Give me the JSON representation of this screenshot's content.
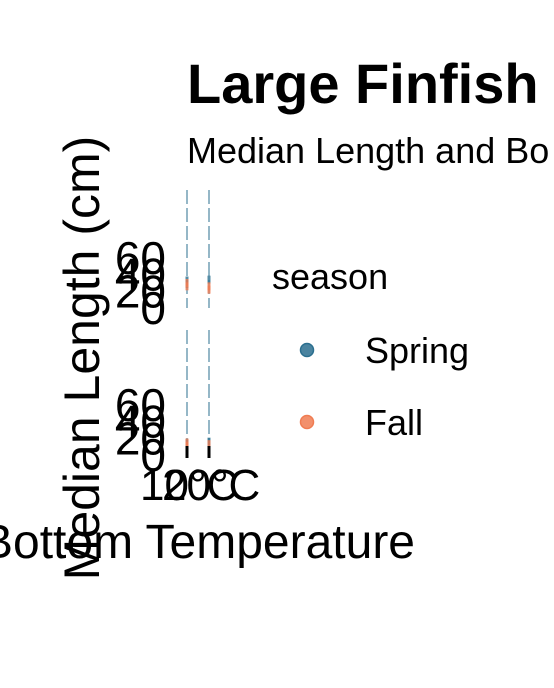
{
  "chart_data": {
    "type": "scatter",
    "title": "Large Finfish",
    "subtitle": "Median Length and Bo",
    "xlabel": "Bottom Temperature",
    "ylabel": "Median Length (cm)",
    "y_ticks": [
      "60",
      "40",
      "20",
      "0"
    ],
    "ylim": [
      0,
      60
    ],
    "x_ticks": [
      "10°C",
      "20°C"
    ],
    "legend": {
      "title": "season",
      "position": "right",
      "entries": [
        {
          "label": "Spring",
          "color": "#2b6f8f"
        },
        {
          "label": "Fall",
          "color": "#f07c52"
        }
      ]
    },
    "panels": [
      {
        "columns": [
          {
            "series": [
              {
                "name": "Spring",
                "points": [
                  [
                    12,
                    33
                  ],
                  [
                    12,
                    29
                  ]
                ]
              },
              {
                "name": "Fall",
                "points": [
                  [
                    12,
                    30
                  ],
                  [
                    12,
                    26
                  ]
                ]
              }
            ]
          },
          {
            "series": [
              {
                "name": "Spring",
                "points": [
                  [
                    20,
                    34
                  ]
                ]
              },
              {
                "name": "Fall",
                "points": [
                  [
                    20,
                    26
                  ],
                  [
                    20,
                    22
                  ]
                ]
              }
            ]
          }
        ]
      },
      {
        "columns": [
          {
            "series": [
              {
                "name": "Spring",
                "points": [
                  [
                    12,
                    14
                  ]
                ]
              },
              {
                "name": "Fall",
                "points": [
                  [
                    12,
                    15
                  ],
                  [
                    12,
                    11
                  ]
                ]
              }
            ]
          },
          {
            "series": [
              {
                "name": "Spring",
                "points": [
                  [
                    20,
                    16
                  ]
                ]
              },
              {
                "name": "Fall",
                "points": [
                  [
                    20,
                    13
                  ]
                ]
              }
            ]
          }
        ]
      }
    ]
  }
}
